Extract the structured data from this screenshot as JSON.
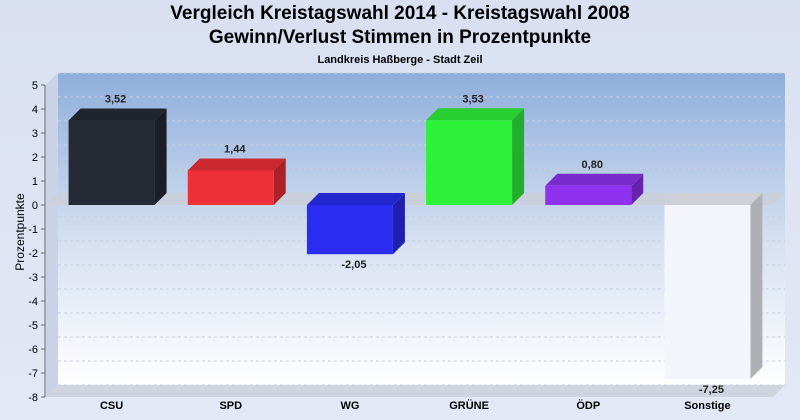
{
  "chart_data": {
    "type": "bar",
    "title": "Vergleich Kreistagswahl 2014 - Kreistagswahl 2008",
    "title2": "Gewinn/Verlust Stimmen in Prozentpunkte",
    "subtitle": "Landkreis Haßberge - Stadt Zeil",
    "ylabel": "Prozentpunkte",
    "xlabel": "",
    "ylim": [
      -8,
      5
    ],
    "yticks": [
      5,
      4,
      3,
      2,
      1,
      0,
      -1,
      -2,
      -3,
      -4,
      -5,
      -6,
      -7,
      -8
    ],
    "categories": [
      "CSU",
      "SPD",
      "WG",
      "GRÜNE",
      "ÖDP",
      "Sonstige"
    ],
    "values": [
      3.52,
      1.44,
      -2.05,
      3.53,
      0.8,
      -7.25
    ],
    "value_labels": [
      "3,52",
      "1,44",
      "-2,05",
      "3,53",
      "0,80",
      "-7,25"
    ],
    "colors": [
      "#252a35",
      "#ee3038",
      "#2b2ef2",
      "#2ef23a",
      "#9131f0",
      "#f3f5fb"
    ],
    "grid": true,
    "legend": "none"
  }
}
